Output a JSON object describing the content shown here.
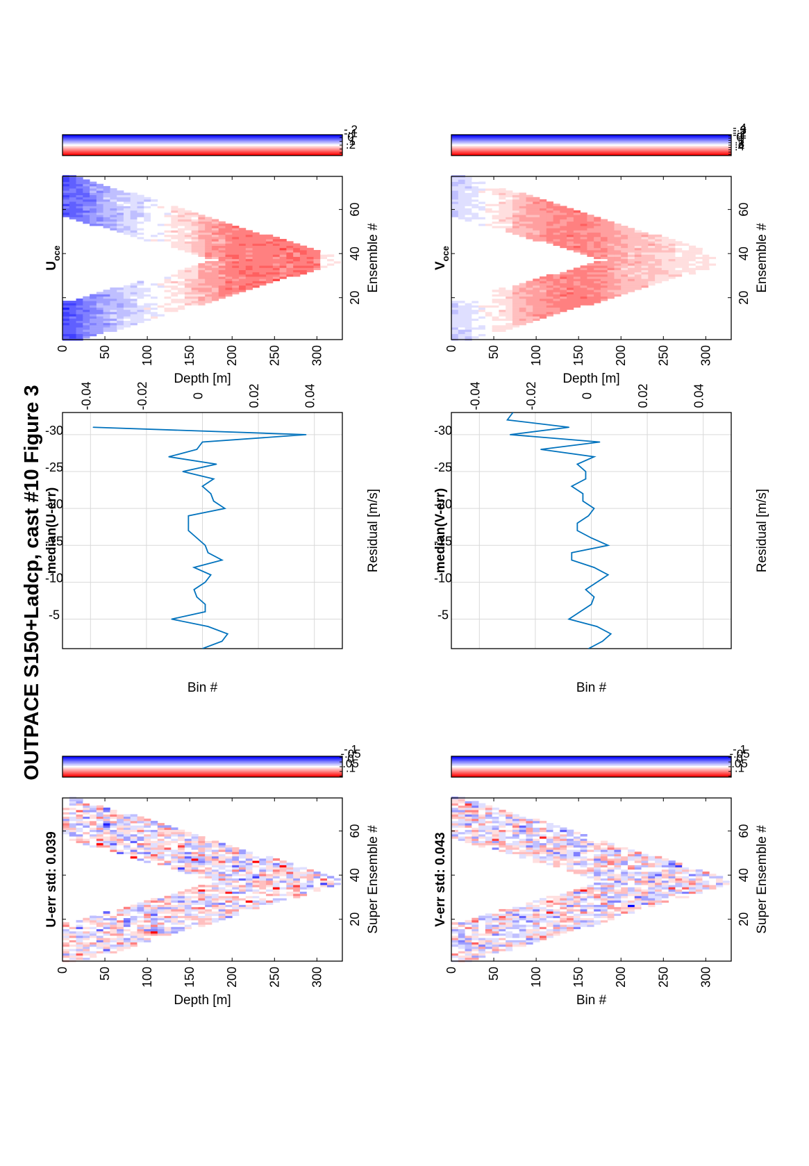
{
  "figure": {
    "title": "OUTPACE S150+Ladcp, cast #10  Figure 3"
  },
  "colors": {
    "red": "#ff0000",
    "white": "#ffffff",
    "blue": "#0000ff",
    "line": "#0072bd",
    "grid": "#d9d9d9"
  },
  "chart_data": [
    {
      "id": "uerr",
      "type": "heatmap",
      "title": "U-err std: 0.039",
      "xlabel": "Super Ensemble #",
      "ylabel": "Depth [m]",
      "xlim": [
        1,
        75
      ],
      "ylim": [
        0,
        330
      ],
      "xticks": [
        20,
        40,
        60
      ],
      "yticks": [
        0,
        50,
        100,
        150,
        200,
        250,
        300
      ],
      "clim": [
        -0.11,
        0.11
      ],
      "colorbar_ticks": [
        0.1,
        0.05,
        0,
        -0.05,
        -0.1
      ],
      "pattern": "noise",
      "shape": {
        "ensembles": 75,
        "bottom_ensemble": 37,
        "bin_m": 8,
        "max_depth": 325
      }
    },
    {
      "id": "umed",
      "type": "line",
      "title": "median(U-err)",
      "xlabel": "Residual [m/s]",
      "ylabel": "Bin #",
      "xlim": [
        -0.05,
        0.05
      ],
      "ylim": [
        -1,
        -33
      ],
      "xticks": [
        -0.04,
        -0.02,
        0,
        0.02,
        0.04
      ],
      "yticks": [
        -5,
        -10,
        -15,
        -20,
        -25,
        -30
      ],
      "x": [
        0.0,
        0.007,
        0.009,
        0.002,
        -0.011,
        0.001,
        0.001,
        -0.002,
        -0.003,
        0.001,
        0.003,
        -0.003,
        0.007,
        0.002,
        0.001,
        -0.002,
        -0.005,
        -0.005,
        -0.005,
        0.008,
        0.004,
        0.003,
        0.0,
        0.004,
        -0.007,
        0.005,
        -0.012,
        -0.002,
        0.0,
        0.037,
        -0.039
      ],
      "y": [
        -1,
        -2,
        -3,
        -4,
        -5,
        -6,
        -7,
        -8,
        -9,
        -10,
        -11,
        -12,
        -13,
        -14,
        -15,
        -16,
        -17,
        -18,
        -19,
        -20,
        -21,
        -22,
        -23,
        -24,
        -25,
        -26,
        -27,
        -28,
        -29,
        -30,
        -31
      ]
    },
    {
      "id": "uoce",
      "type": "heatmap",
      "title": "U",
      "title_sub": "oce",
      "xlabel": "Ensemble #",
      "ylabel": "Depth [m]",
      "xlim": [
        1,
        75
      ],
      "ylim": [
        0,
        330
      ],
      "xticks": [
        20,
        40,
        60
      ],
      "yticks": [
        0,
        50,
        100,
        150,
        200,
        250,
        300
      ],
      "clim": [
        -0.27,
        0.27
      ],
      "colorbar_ticks": [
        0.2,
        0.1,
        0,
        -0.1,
        -0.2
      ],
      "pattern": "u",
      "shape": {
        "ensembles": 75,
        "bottom_ensemble": 37,
        "bin_m": 8,
        "max_depth": 325
      }
    },
    {
      "id": "verr",
      "type": "heatmap",
      "title": "V-err std: 0.043",
      "xlabel": "Super Ensemble #",
      "ylabel": "Bin #",
      "xlim": [
        1,
        75
      ],
      "ylim": [
        0,
        330
      ],
      "xticks": [
        20,
        40,
        60
      ],
      "yticks": [
        0,
        50,
        100,
        150,
        200,
        250,
        300
      ],
      "clim": [
        -0.11,
        0.11
      ],
      "colorbar_ticks": [
        0.1,
        0.05,
        0,
        -0.05,
        -0.1
      ],
      "pattern": "noise",
      "shape": {
        "ensembles": 75,
        "bottom_ensemble": 37,
        "bin_m": 8,
        "max_depth": 325
      }
    },
    {
      "id": "vmed",
      "type": "line",
      "title": "median(V-err)",
      "xlabel": "Residual [m/s]",
      "ylabel": "Bin #",
      "xlim": [
        -0.05,
        0.05
      ],
      "ylim": [
        -1,
        -33
      ],
      "xticks": [
        -0.04,
        -0.02,
        0,
        0.02,
        0.04
      ],
      "yticks": [
        -5,
        -10,
        -15,
        -20,
        -25,
        -30
      ],
      "x": [
        -0.001,
        0.004,
        0.007,
        0.002,
        -0.008,
        -0.004,
        0.0,
        0.001,
        -0.002,
        0.002,
        0.006,
        0.001,
        -0.007,
        -0.007,
        0.006,
        0.0,
        -0.005,
        -0.005,
        -0.001,
        0.001,
        -0.003,
        -0.003,
        -0.007,
        -0.002,
        -0.002,
        -0.005,
        0.001,
        -0.018,
        0.003,
        -0.029,
        -0.008,
        -0.03,
        -0.028
      ],
      "y": [
        -1,
        -2,
        -3,
        -4,
        -5,
        -6,
        -7,
        -8,
        -9,
        -10,
        -11,
        -12,
        -13,
        -14,
        -15,
        -16,
        -17,
        -18,
        -19,
        -20,
        -21,
        -22,
        -23,
        -24,
        -25,
        -26,
        -27,
        -28,
        -29,
        -30,
        -31,
        -32,
        -33
      ]
    },
    {
      "id": "voce",
      "type": "heatmap",
      "title": "V",
      "title_sub": "oce",
      "xlabel": "Ensemble #",
      "ylabel": "Depth [m]",
      "xlim": [
        1,
        75
      ],
      "ylim": [
        0,
        330
      ],
      "xticks": [
        20,
        40,
        60
      ],
      "yticks": [
        0,
        50,
        100,
        150,
        200,
        250,
        300
      ],
      "clim": [
        -0.45,
        0.45
      ],
      "colorbar_ticks": [
        0.4,
        0.3,
        0.2,
        0.1,
        0,
        -0.1,
        -0.2,
        -0.3,
        -0.4
      ],
      "pattern": "v",
      "shape": {
        "ensembles": 75,
        "bottom_ensemble": 37,
        "bin_m": 8,
        "max_depth": 325
      }
    }
  ]
}
